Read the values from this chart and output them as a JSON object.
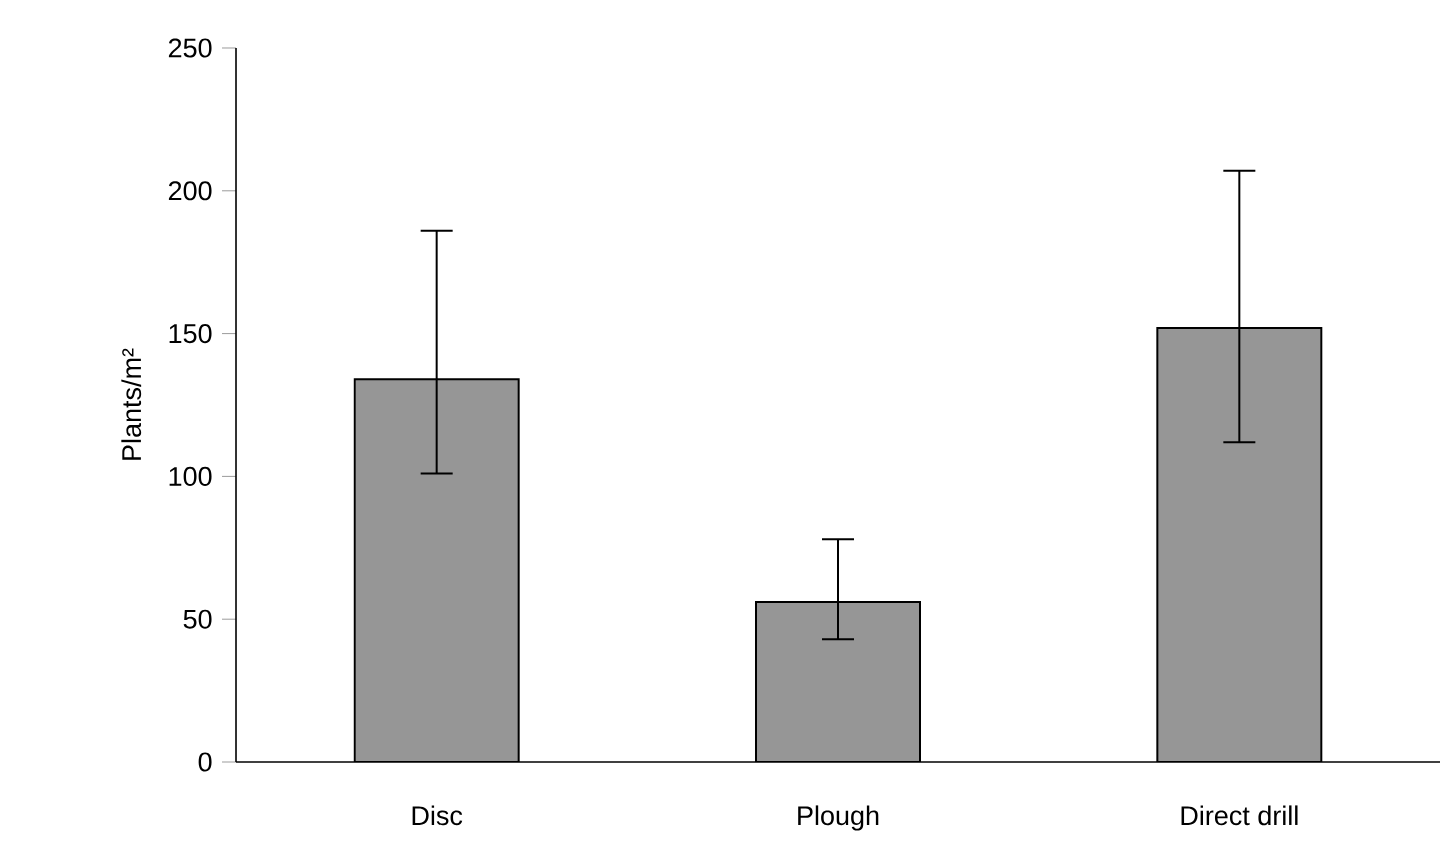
{
  "chart_data": {
    "type": "bar",
    "ylabel": "Plants/m²",
    "categories": [
      "Disc",
      "Plough",
      "Direct drill"
    ],
    "values": [
      134,
      56,
      152
    ],
    "errors": [
      [
        101,
        186
      ],
      [
        43,
        78
      ],
      [
        112,
        207
      ]
    ],
    "color": "#969696",
    "ylim": [
      0,
      250
    ],
    "yticks": [
      0,
      50,
      100,
      150,
      200,
      250
    ],
    "grid": false
  }
}
